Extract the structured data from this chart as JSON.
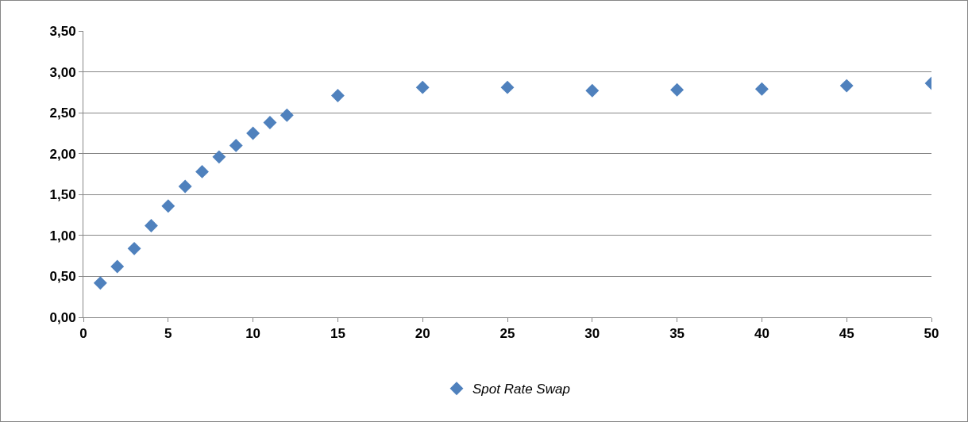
{
  "chart_data": {
    "type": "scatter",
    "x": [
      1,
      2,
      3,
      4,
      5,
      6,
      7,
      8,
      9,
      10,
      11,
      12,
      15,
      20,
      25,
      30,
      35,
      40,
      45,
      50
    ],
    "series": [
      {
        "name": "Spot Rate Swap",
        "color": "#4f81bd",
        "values": [
          0.42,
          0.62,
          0.84,
          1.12,
          1.36,
          1.6,
          1.78,
          1.96,
          2.1,
          2.25,
          2.38,
          2.47,
          2.71,
          2.81,
          2.81,
          2.77,
          2.78,
          2.79,
          2.83,
          2.86
        ]
      }
    ],
    "xlim": [
      0,
      50
    ],
    "xticks": [
      0,
      5,
      10,
      15,
      20,
      25,
      30,
      35,
      40,
      45,
      50
    ],
    "ylim": [
      0,
      3.5
    ],
    "yticks": [
      {
        "value": 0,
        "label": "0,00"
      },
      {
        "value": 0.5,
        "label": "0,50"
      },
      {
        "value": 1,
        "label": "1,00"
      },
      {
        "value": 1.5,
        "label": "1,50"
      },
      {
        "value": 2,
        "label": "2,00"
      },
      {
        "value": 2.5,
        "label": "2,50"
      },
      {
        "value": 3,
        "label": "3,00"
      },
      {
        "value": 3.5,
        "label": "3,50"
      }
    ],
    "grid": "y",
    "legend": "bottom",
    "marker": "diamond"
  }
}
